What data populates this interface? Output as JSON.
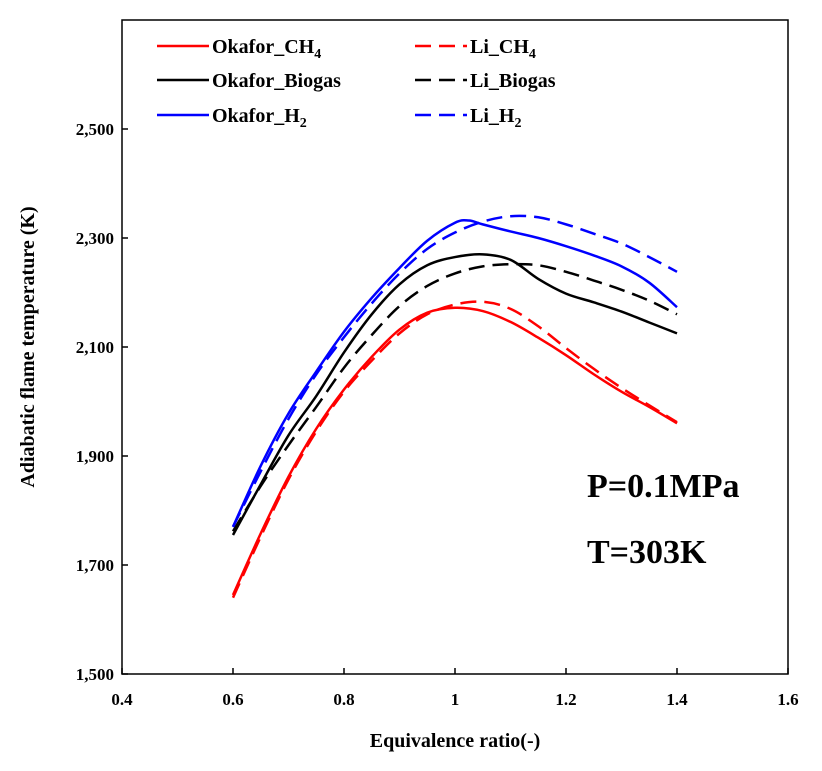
{
  "chart_data": {
    "type": "line",
    "title": "",
    "xlabel": "Equivalence ratio(-)",
    "ylabel": "Adiabatic flame temperature (K)",
    "xlim": [
      0.4,
      1.6
    ],
    "ylim": [
      1500,
      2700
    ],
    "x_ticks": [
      0.4,
      0.6,
      0.8,
      1,
      1.2,
      1.4,
      1.6
    ],
    "x_tick_labels": [
      "0.4",
      "0.6",
      "0.8",
      "1",
      "1.2",
      "1.4",
      "1.6"
    ],
    "y_ticks": [
      1500,
      1700,
      1900,
      2100,
      2300,
      2500
    ],
    "y_tick_labels": [
      "1,500",
      "1,700",
      "1,900",
      "2,100",
      "2,300",
      "2,500"
    ],
    "grid": false,
    "legend_position": "top",
    "annotations": [
      "P=0.1MPa",
      "T=303K"
    ],
    "series": [
      {
        "name": "Okafor_CH4",
        "label_main": "Okafor_CH",
        "label_sub": "4",
        "color": "#ff0000",
        "dash": "solid",
        "x": [
          0.6,
          0.65,
          0.7,
          0.75,
          0.8,
          0.85,
          0.9,
          0.95,
          1.0,
          1.05,
          1.1,
          1.15,
          1.2,
          1.25,
          1.3,
          1.35,
          1.4
        ],
        "y": [
          1645,
          1758,
          1862,
          1950,
          2022,
          2082,
          2132,
          2163,
          2172,
          2166,
          2146,
          2117,
          2085,
          2050,
          2018,
          1990,
          1960
        ]
      },
      {
        "name": "Li_CH4",
        "label_main": "Li_CH",
        "label_sub": "4",
        "color": "#ff0000",
        "dash": "dashed",
        "x": [
          0.6,
          0.65,
          0.7,
          0.75,
          0.8,
          0.85,
          0.9,
          0.95,
          1.0,
          1.05,
          1.1,
          1.15,
          1.2,
          1.25,
          1.3,
          1.35,
          1.4
        ],
        "y": [
          1640,
          1752,
          1857,
          1945,
          2018,
          2075,
          2125,
          2160,
          2178,
          2183,
          2170,
          2138,
          2098,
          2060,
          2025,
          1993,
          1962
        ]
      },
      {
        "name": "Okafor_Biogas",
        "label_main": "Okafor_Biogas",
        "label_sub": "",
        "color": "#000000",
        "dash": "solid",
        "x": [
          0.6,
          0.65,
          0.7,
          0.75,
          0.8,
          0.85,
          0.9,
          0.95,
          1.0,
          1.05,
          1.1,
          1.15,
          1.2,
          1.25,
          1.3,
          1.35,
          1.4
        ],
        "y": [
          1755,
          1848,
          1938,
          2010,
          2090,
          2160,
          2215,
          2250,
          2265,
          2270,
          2260,
          2225,
          2198,
          2182,
          2165,
          2145,
          2125
        ]
      },
      {
        "name": "Li_Biogas",
        "label_main": "Li_Biogas",
        "label_sub": "",
        "color": "#000000",
        "dash": "dashed",
        "x": [
          0.6,
          0.65,
          0.7,
          0.75,
          0.8,
          0.85,
          0.9,
          0.95,
          1.0,
          1.05,
          1.1,
          1.15,
          1.2,
          1.25,
          1.3,
          1.35,
          1.4
        ],
        "y": [
          1762,
          1845,
          1920,
          1990,
          2062,
          2122,
          2175,
          2212,
          2235,
          2248,
          2252,
          2250,
          2238,
          2222,
          2205,
          2185,
          2160
        ]
      },
      {
        "name": "Okafor_H2",
        "label_main": "Okafor_H",
        "label_sub": "2",
        "color": "#0000ff",
        "dash": "solid",
        "x": [
          0.6,
          0.65,
          0.7,
          0.75,
          0.8,
          0.85,
          0.9,
          0.95,
          1.0,
          1.025,
          1.05,
          1.1,
          1.15,
          1.2,
          1.25,
          1.3,
          1.35,
          1.4
        ],
        "y": [
          1770,
          1882,
          1978,
          2055,
          2128,
          2190,
          2245,
          2295,
          2328,
          2332,
          2325,
          2312,
          2300,
          2285,
          2268,
          2248,
          2218,
          2173
        ]
      },
      {
        "name": "Li_H2",
        "label_main": "Li_H",
        "label_sub": "2",
        "color": "#0000ff",
        "dash": "dashed",
        "x": [
          0.6,
          0.65,
          0.7,
          0.75,
          0.8,
          0.85,
          0.9,
          0.95,
          1.0,
          1.05,
          1.1,
          1.15,
          1.2,
          1.25,
          1.3,
          1.35,
          1.4
        ],
        "y": [
          1770,
          1872,
          1968,
          2050,
          2118,
          2180,
          2235,
          2280,
          2310,
          2330,
          2340,
          2338,
          2325,
          2308,
          2290,
          2265,
          2238
        ]
      }
    ]
  }
}
